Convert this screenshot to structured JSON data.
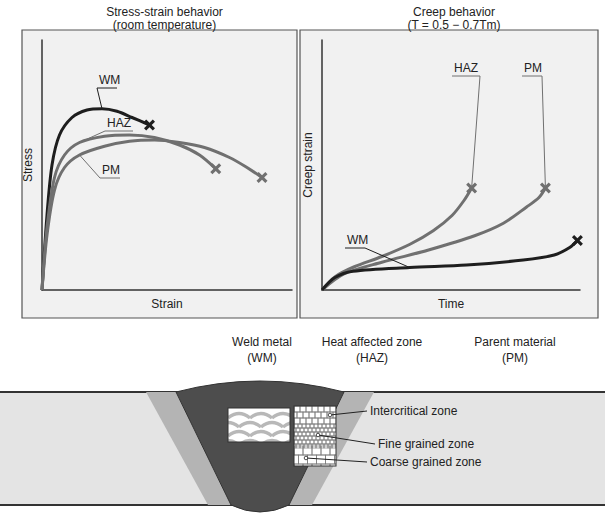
{
  "chart_data": [
    {
      "type": "line",
      "title": "Stress-strain behavior",
      "subtitle": "(room temperature)",
      "x_label": "Strain",
      "y_label": "Stress",
      "xlim": [
        0,
        100
      ],
      "ylim": [
        0,
        100
      ],
      "tick_labels": false,
      "grid": false,
      "series": [
        {
          "name": "WM",
          "color": "#1e1e1e",
          "marker": "x",
          "x": [
            0,
            2,
            4,
            7,
            12,
            18,
            24,
            30,
            36,
            43
          ],
          "values": [
            0,
            30,
            50,
            62,
            69,
            72,
            72.5,
            71.5,
            69,
            66
          ]
        },
        {
          "name": "HAZ",
          "color": "#707070",
          "marker": "x",
          "x": [
            0,
            2,
            5,
            9,
            15,
            25,
            35,
            45,
            55,
            63,
            69.5
          ],
          "values": [
            0,
            25,
            45,
            54,
            59,
            61.5,
            62,
            61,
            58,
            54,
            48.5
          ]
        },
        {
          "name": "PM",
          "color": "#707070",
          "marker": "x",
          "x": [
            0,
            2,
            5,
            9,
            15,
            25,
            35,
            45,
            55,
            65,
            75,
            82,
            88
          ],
          "values": [
            0,
            22,
            40,
            49,
            54,
            57.5,
            59.5,
            60,
            59,
            57,
            53,
            49,
            45
          ]
        }
      ]
    },
    {
      "type": "line",
      "title": "Creep behavior",
      "subtitle": "(T = 0.5 − 0.7Tm)",
      "x_label": "Time",
      "y_label": "Creep strain",
      "xlim": [
        0,
        100
      ],
      "ylim": [
        0,
        100
      ],
      "tick_labels": false,
      "grid": false,
      "series": [
        {
          "name": "HAZ",
          "color": "#707070",
          "marker": "x",
          "x": [
            0,
            5.1,
            12.3,
            23.2,
            34.1,
            43.1,
            50.4,
            55.1,
            58
          ],
          "values": [
            0,
            5.3,
            9.2,
            13.4,
            18.3,
            23.7,
            29.8,
            35.9,
            40.8
          ]
        },
        {
          "name": "PM",
          "color": "#707070",
          "marker": "x",
          "x": [
            0,
            8.7,
            23.2,
            41.3,
            59.4,
            70.3,
            79.3,
            84.1,
            86.6
          ],
          "values": [
            0,
            6.5,
            11.1,
            16,
            21.8,
            26.7,
            33.2,
            37,
            40.8
          ]
        },
        {
          "name": "WM",
          "color": "#1e1e1e",
          "marker": "x",
          "x": [
            0,
            5,
            12,
            34,
            56,
            78,
            90,
            96,
            99
          ],
          "values": [
            0,
            5,
            7.5,
            9,
            10,
            12,
            14,
            17,
            19.8
          ]
        }
      ]
    }
  ],
  "diagram": {
    "regions": [
      {
        "name": "Weld metal",
        "abbr": "(WM)"
      },
      {
        "name": "Heat affected zone",
        "abbr": "(HAZ)"
      },
      {
        "name": "Parent material",
        "abbr": "(PM)"
      }
    ],
    "haz_zones": [
      "Intercritical zone",
      "Fine grained zone",
      "Coarse grained zone"
    ]
  }
}
